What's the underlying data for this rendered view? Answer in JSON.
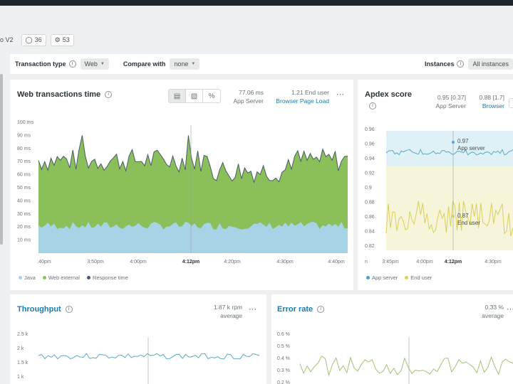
{
  "crumbs": {
    "app_version": "o V2",
    "tags_count": "36",
    "settings_count": "53"
  },
  "filters": {
    "transaction_type_label": "Transaction type",
    "transaction_type_value": "Web",
    "compare_label": "Compare with",
    "compare_value": "none",
    "instances_label": "Instances",
    "instances_value": "All instances"
  },
  "web_tx": {
    "title": "Web transactions time",
    "app_server_value": "77.06 ms",
    "app_server_label": "App Server",
    "end_user_value": "1.21 End user",
    "end_user_label": "Browser Page Load",
    "view_icons": [
      "area-chart-icon",
      "bar-chart-icon",
      "percent-icon"
    ],
    "y_ticks": [
      "100 ms",
      "90 ms",
      "80 ms",
      "70 ms",
      "60 ms",
      "50 ms",
      "40 ms",
      "30 ms",
      "20 ms",
      "10 ms"
    ],
    "x_ticks": [
      ":40pm",
      "3:50pm",
      "4:00pm",
      "4:12pm",
      "4:20pm",
      "4:30pm",
      "4:40pm"
    ],
    "cursor_tick": "4:12pm",
    "legend": [
      {
        "label": "Java",
        "color": "#a7d3e6"
      },
      {
        "label": "Web external",
        "color": "#8bbf5a"
      },
      {
        "label": "Response time",
        "color": "#4a5a6a"
      }
    ]
  },
  "apdex": {
    "title": "Apdex score",
    "app_server_value": "0.95 [0.37]",
    "app_server_label": "App Server",
    "browser_value": "0.88 [1.7]",
    "browser_label": "Browser",
    "y_ticks": [
      "0.96",
      "0.96",
      "0.94",
      "0.92",
      "0.9",
      "0.88",
      "0.86",
      "0.84",
      "0.82"
    ],
    "x_ticks": [
      "n",
      "3:45pm",
      "4:00pm",
      "4:12pm",
      "4:30pm"
    ],
    "cursor_tick": "4:12pm",
    "app_server_annot": "0.97",
    "app_server_annot_label": "App server",
    "end_user_annot": "0.87",
    "end_user_annot_label": "End user",
    "legend": [
      {
        "label": "App server",
        "color": "#4a9fcb"
      },
      {
        "label": "End user",
        "color": "#d9cf5a"
      }
    ]
  },
  "throughput": {
    "title": "Throughput",
    "value": "1.87 k rpm",
    "value_label": "average",
    "y_ticks": [
      "2.5 k",
      "2 k",
      "1.5 k",
      "1 k"
    ]
  },
  "error_rate": {
    "title": "Error rate",
    "value": "0.33 %",
    "value_label": "average",
    "y_ticks": [
      "0.6 %",
      "0.5 %",
      "0.4 %",
      "0.3 %",
      "0.2 %"
    ]
  },
  "colors": {
    "green_area": "#8bbf5a",
    "blue_area": "#a7d3e6",
    "apdex_blue_band": "#dff0f6",
    "apdex_yellow_band": "#f6f5da",
    "yellow_line": "#d9cf5a",
    "teal_line": "#5aa9c8",
    "link_blue": "#1b7cad"
  }
}
